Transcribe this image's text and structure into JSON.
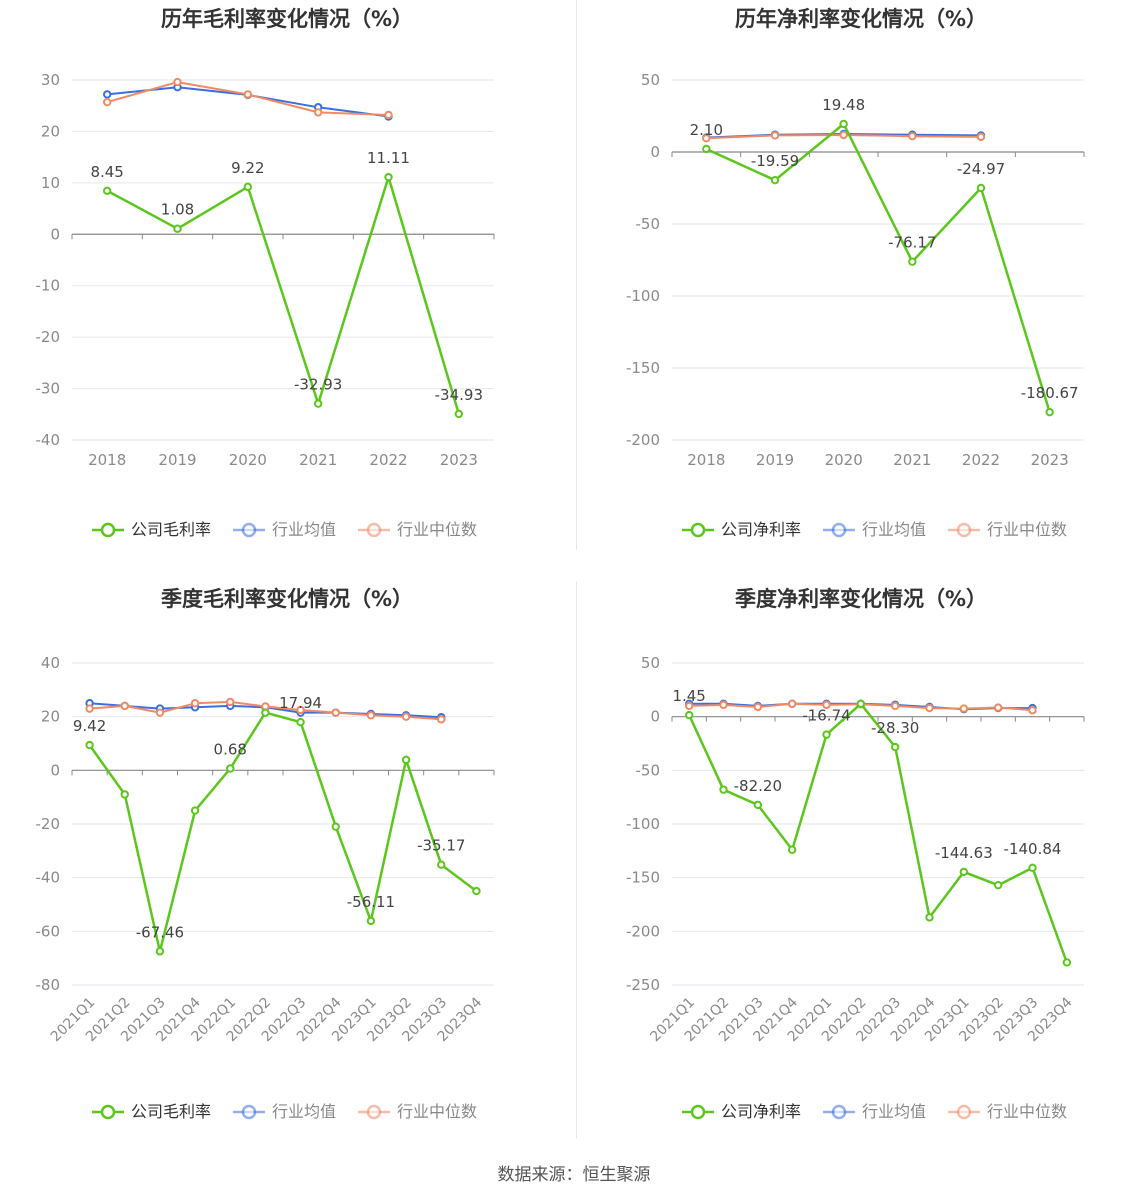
{
  "footer": {
    "source": "数据来源：恒生聚源"
  },
  "legend_colors": {
    "company": "#5bc61c",
    "industry_avg": "#3b6fe0",
    "industry_median": "#f08a65"
  },
  "chart_data": [
    {
      "type": "line",
      "title": "历年毛利率变化情况（%）",
      "categories": [
        "2018",
        "2019",
        "2020",
        "2021",
        "2022",
        "2023"
      ],
      "ylim": [
        -40,
        30
      ],
      "yticks": [
        30,
        20,
        10,
        0,
        -10,
        -20,
        -30,
        -40
      ],
      "grid": true,
      "legend_position": "bottom",
      "series": [
        {
          "name": "公司毛利率",
          "color": "#5bc61c",
          "values": [
            8.45,
            1.08,
            9.22,
            -32.93,
            11.11,
            -34.93
          ],
          "labels": [
            "8.45",
            "1.08",
            "9.22",
            "-32.93",
            "11.11",
            "-34.93"
          ]
        },
        {
          "name": "行业均值",
          "color": "#3b6fe0",
          "values": [
            27.2,
            28.6,
            27.1,
            24.7,
            22.9,
            null
          ]
        },
        {
          "name": "行业中位数",
          "color": "#f08a65",
          "values": [
            25.7,
            29.6,
            27.2,
            23.7,
            23.2,
            null
          ]
        }
      ]
    },
    {
      "type": "line",
      "title": "历年净利率变化情况（%）",
      "categories": [
        "2018",
        "2019",
        "2020",
        "2021",
        "2022",
        "2023"
      ],
      "ylim": [
        -200,
        50
      ],
      "yticks": [
        50,
        0,
        -50,
        -100,
        -150,
        -200
      ],
      "grid": true,
      "legend_position": "bottom",
      "series": [
        {
          "name": "公司净利率",
          "color": "#5bc61c",
          "values": [
            2.1,
            -19.59,
            19.48,
            -76.17,
            -24.97,
            -180.67
          ],
          "labels": [
            "2.10",
            "-19.59",
            "19.48",
            "-76.17",
            "-24.97",
            "-180.67"
          ]
        },
        {
          "name": "行业均值",
          "color": "#3b6fe0",
          "values": [
            10.0,
            12.0,
            12.5,
            12.0,
            11.5,
            null
          ]
        },
        {
          "name": "行业中位数",
          "color": "#f08a65",
          "values": [
            9.5,
            11.5,
            11.8,
            11.0,
            10.5,
            null
          ]
        }
      ]
    },
    {
      "type": "line",
      "title": "季度毛利率变化情况（%）",
      "categories": [
        "2021Q1",
        "2021Q2",
        "2021Q3",
        "2021Q4",
        "2022Q1",
        "2022Q2",
        "2022Q3",
        "2022Q4",
        "2023Q1",
        "2023Q2",
        "2023Q3",
        "2023Q4"
      ],
      "ylim": [
        -80,
        40
      ],
      "yticks": [
        40,
        20,
        0,
        -20,
        -40,
        -60,
        -80
      ],
      "grid": true,
      "legend_position": "bottom",
      "series": [
        {
          "name": "公司毛利率",
          "color": "#5bc61c",
          "values": [
            9.42,
            -9.0,
            -67.46,
            -15.0,
            0.68,
            21.5,
            17.94,
            -21.0,
            -56.11,
            3.9,
            -35.17,
            -45.0
          ],
          "labels": [
            "9.42",
            null,
            "-67.46",
            null,
            "0.68",
            null,
            "17.94",
            null,
            "-56.11",
            null,
            "-35.17",
            null
          ]
        },
        {
          "name": "行业均值",
          "color": "#3b6fe0",
          "values": [
            25.0,
            24.0,
            23.0,
            23.5,
            24.0,
            23.5,
            21.5,
            21.5,
            21.0,
            20.5,
            19.8,
            null
          ]
        },
        {
          "name": "行业中位数",
          "color": "#f08a65",
          "values": [
            23.0,
            24.0,
            21.5,
            25.0,
            25.5,
            23.8,
            22.5,
            21.5,
            20.5,
            20.0,
            19.0,
            null
          ]
        }
      ]
    },
    {
      "type": "line",
      "title": "季度净利率变化情况（%）",
      "categories": [
        "2021Q1",
        "2021Q2",
        "2021Q3",
        "2021Q4",
        "2022Q1",
        "2022Q2",
        "2022Q3",
        "2022Q4",
        "2023Q1",
        "2023Q2",
        "2023Q3",
        "2023Q4"
      ],
      "ylim": [
        -250,
        50
      ],
      "yticks": [
        50,
        0,
        -50,
        -100,
        -150,
        -200,
        -250
      ],
      "grid": true,
      "legend_position": "bottom",
      "series": [
        {
          "name": "公司净利率",
          "color": "#5bc61c",
          "values": [
            1.45,
            -68.0,
            -82.2,
            -124.0,
            -16.74,
            12.0,
            -28.3,
            -187.0,
            -144.63,
            -157.0,
            -140.84,
            -229.0
          ],
          "labels": [
            "1.45",
            null,
            "-82.20",
            null,
            "-16.74",
            null,
            "-28.30",
            null,
            "-144.63",
            null,
            "-140.84",
            null
          ]
        },
        {
          "name": "行业均值",
          "color": "#3b6fe0",
          "values": [
            12.0,
            12.0,
            10.0,
            12.0,
            12.0,
            12.0,
            11.0,
            9.0,
            7.0,
            8.0,
            8.0,
            null
          ]
        },
        {
          "name": "行业中位数",
          "color": "#f08a65",
          "values": [
            10.0,
            11.0,
            9.0,
            12.0,
            11.0,
            11.5,
            10.0,
            8.0,
            7.5,
            8.5,
            6.0,
            null
          ]
        }
      ]
    }
  ]
}
